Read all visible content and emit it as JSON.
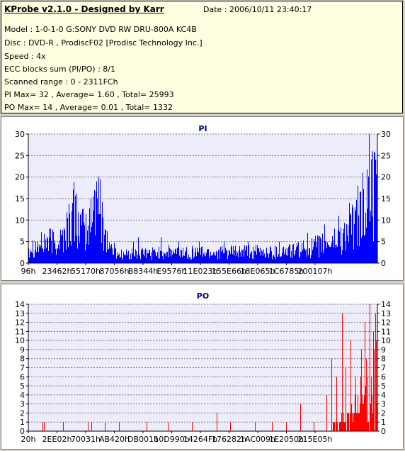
{
  "header": {
    "title": "KProbe v2.1.0 - Designed by Karr",
    "date_label": "Date : 2006/10/11 23:40:17",
    "lines": [
      "Model : 1-0-1-0 G:SONY    DVD RW DRU-800A  KC4B",
      "Disc : DVD-R , ProdiscF02 [Prodisc Technology Inc.]",
      "Speed : 4x",
      "ECC blocks sum (PI/PO) : 8/1",
      "Scanned range : 0 - 2311FCh",
      "PI Max= 32 , Average= 1.60 , Total= 25993",
      "PO Max= 14 , Average= 0.01 , Total= 1332"
    ]
  },
  "colors": {
    "pi": "#0000ff",
    "po": "#ff0000",
    "title": "#000080",
    "plot_bg": "#ececfa"
  },
  "chart_data": [
    {
      "type": "bar",
      "title": "PI",
      "ylim": [
        0,
        30
      ],
      "yticks": [
        0,
        5,
        10,
        15,
        20,
        25,
        30
      ],
      "xtick_labels": [
        "96h",
        "23462h",
        "55170h",
        "87056h",
        "B8344h",
        "E9576h",
        "11E023h",
        "155E66h",
        "18E065h",
        "1C6785h",
        "200107h"
      ],
      "grid": true,
      "profile": [
        [
          0,
          4
        ],
        [
          0.03,
          4
        ],
        [
          0.05,
          5
        ],
        [
          0.08,
          5
        ],
        [
          0.1,
          6
        ],
        [
          0.12,
          10
        ],
        [
          0.135,
          12
        ],
        [
          0.15,
          8
        ],
        [
          0.17,
          7
        ],
        [
          0.185,
          12
        ],
        [
          0.2,
          14
        ],
        [
          0.215,
          9
        ],
        [
          0.23,
          4
        ],
        [
          0.26,
          2
        ],
        [
          0.3,
          2
        ],
        [
          0.4,
          2.5
        ],
        [
          0.5,
          2.5
        ],
        [
          0.6,
          2.5
        ],
        [
          0.7,
          2.5
        ],
        [
          0.78,
          3
        ],
        [
          0.84,
          4
        ],
        [
          0.9,
          6
        ],
        [
          0.94,
          9
        ],
        [
          0.97,
          13
        ],
        [
          1.0,
          16
        ]
      ],
      "spikes": [
        [
          0.125,
          14
        ],
        [
          0.19,
          17
        ],
        [
          0.195,
          19
        ],
        [
          0.3,
          5
        ],
        [
          0.315,
          6
        ],
        [
          0.38,
          6
        ],
        [
          0.43,
          5
        ],
        [
          0.49,
          5
        ],
        [
          0.56,
          5
        ],
        [
          0.63,
          5
        ],
        [
          0.72,
          5
        ],
        [
          0.8,
          7
        ],
        [
          0.85,
          9
        ],
        [
          0.89,
          11
        ],
        [
          0.92,
          14
        ],
        [
          0.945,
          18
        ],
        [
          0.96,
          21
        ],
        [
          0.978,
          30
        ],
        [
          0.988,
          26
        ],
        [
          0.995,
          24
        ]
      ]
    },
    {
      "type": "bar",
      "title": "PO",
      "ylim": [
        0,
        14
      ],
      "yticks": [
        0,
        1,
        2,
        3,
        4,
        5,
        6,
        7,
        8,
        9,
        10,
        11,
        12,
        13,
        14
      ],
      "xtick_labels": [
        "20h",
        "2EE02h",
        "70031h",
        "AB420h",
        "DB001h",
        "10D990h",
        "14264Fh",
        "176282h",
        "1AC009h",
        "1E2050h",
        "215E05h"
      ],
      "grid": true,
      "profile": [
        [
          0,
          0
        ],
        [
          0.85,
          0
        ],
        [
          0.88,
          0.5
        ],
        [
          0.92,
          1.5
        ],
        [
          0.95,
          3
        ],
        [
          0.98,
          5
        ],
        [
          1.0,
          6
        ]
      ],
      "spikes": [
        [
          0.04,
          1
        ],
        [
          0.045,
          1
        ],
        [
          0.1,
          1
        ],
        [
          0.17,
          1
        ],
        [
          0.18,
          1
        ],
        [
          0.22,
          1
        ],
        [
          0.26,
          1
        ],
        [
          0.34,
          1
        ],
        [
          0.4,
          1
        ],
        [
          0.47,
          1
        ],
        [
          0.54,
          2
        ],
        [
          0.58,
          1
        ],
        [
          0.65,
          1
        ],
        [
          0.7,
          1
        ],
        [
          0.74,
          1
        ],
        [
          0.78,
          3
        ],
        [
          0.82,
          1
        ],
        [
          0.855,
          4
        ],
        [
          0.87,
          8
        ],
        [
          0.885,
          6
        ],
        [
          0.9,
          13
        ],
        [
          0.91,
          7
        ],
        [
          0.925,
          10
        ],
        [
          0.94,
          6
        ],
        [
          0.955,
          9
        ],
        [
          0.965,
          12
        ],
        [
          0.98,
          14
        ],
        [
          0.99,
          11
        ],
        [
          0.995,
          13
        ]
      ]
    }
  ]
}
